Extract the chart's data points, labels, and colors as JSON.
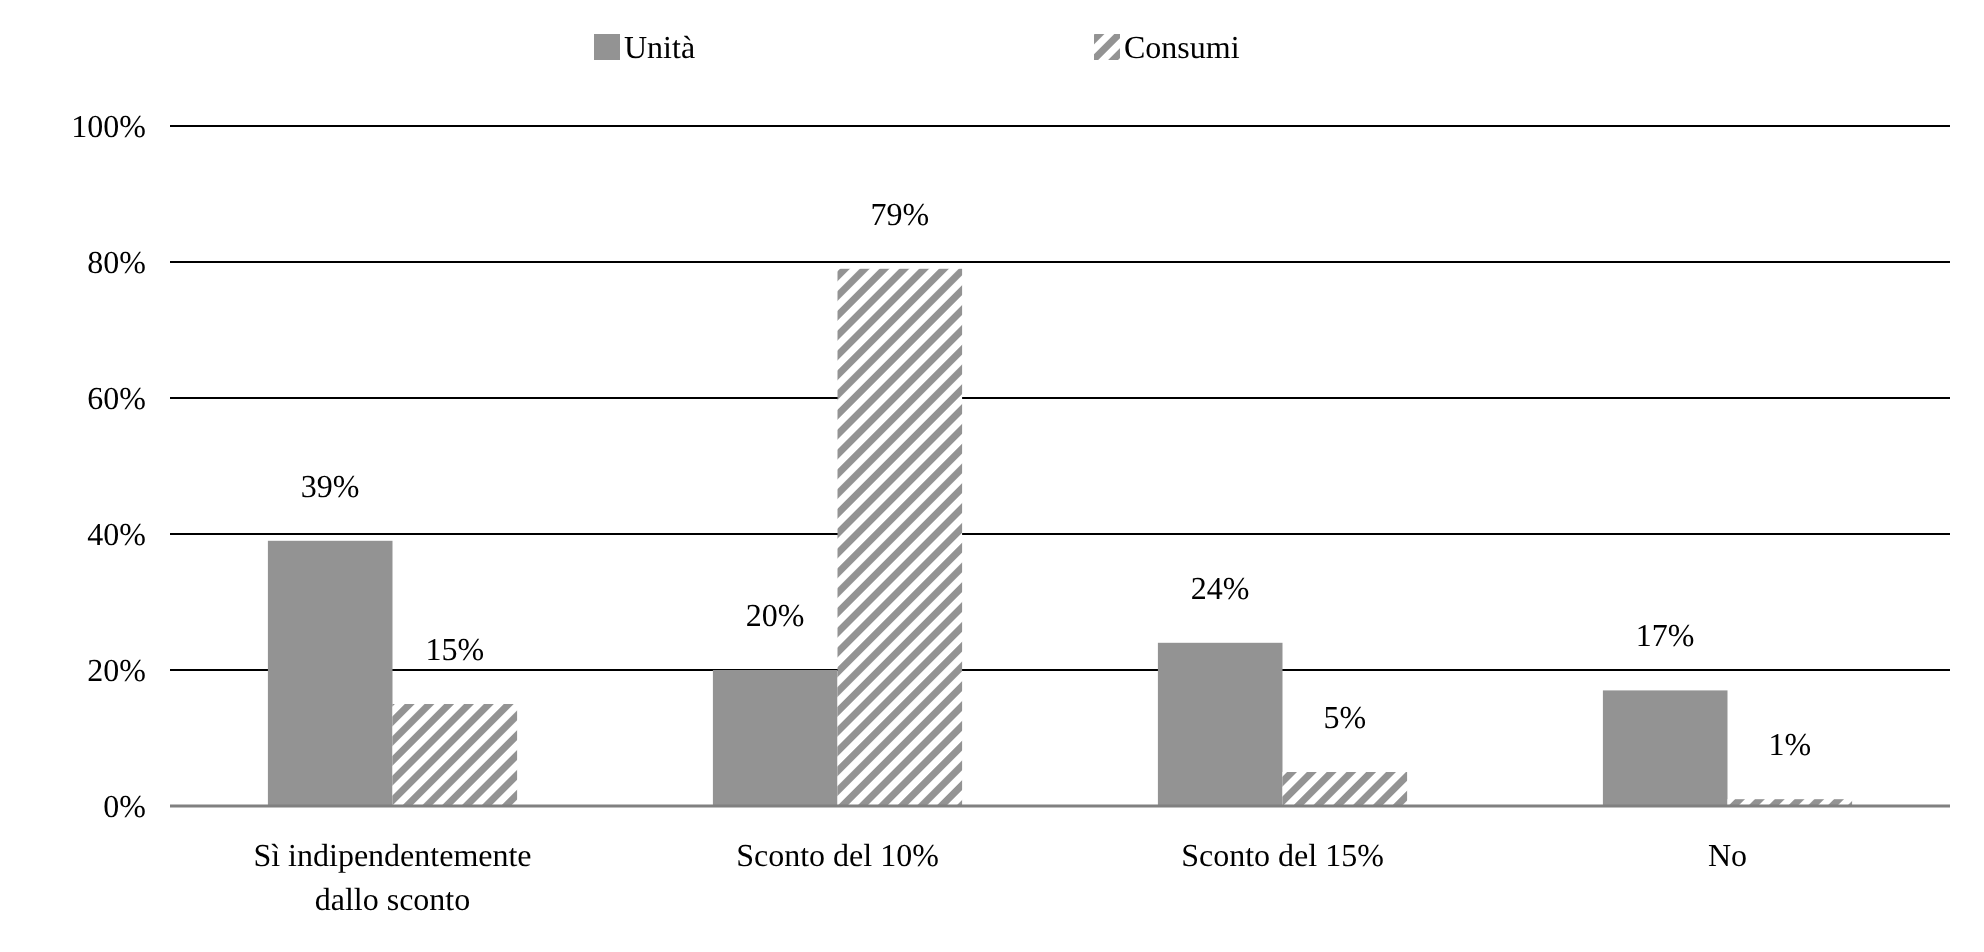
{
  "chart_data": {
    "type": "bar",
    "categories": [
      "Sì indipendentemente dallo sconto",
      "Sconto del 10%",
      "Sconto del 15%",
      "No"
    ],
    "series": [
      {
        "name": "Unità",
        "color": "#939393",
        "values": [
          39,
          20,
          24,
          17
        ],
        "value_labels": [
          "39%",
          "20%",
          "24%",
          "17%"
        ]
      },
      {
        "name": "Consumi",
        "color": "#939393",
        "values": [
          15,
          79,
          5,
          1
        ],
        "value_labels": [
          "15%",
          "79%",
          "5%",
          "1%"
        ]
      }
    ],
    "ylim": [
      0,
      100
    ],
    "yticks": [
      {
        "value": 0,
        "label": "0%"
      },
      {
        "value": 20,
        "label": "20%"
      },
      {
        "value": 40,
        "label": "40%"
      },
      {
        "value": 60,
        "label": "60%"
      },
      {
        "value": 80,
        "label": "80%"
      },
      {
        "value": 100,
        "label": "100%"
      }
    ],
    "grid": "y",
    "legend": "top"
  }
}
